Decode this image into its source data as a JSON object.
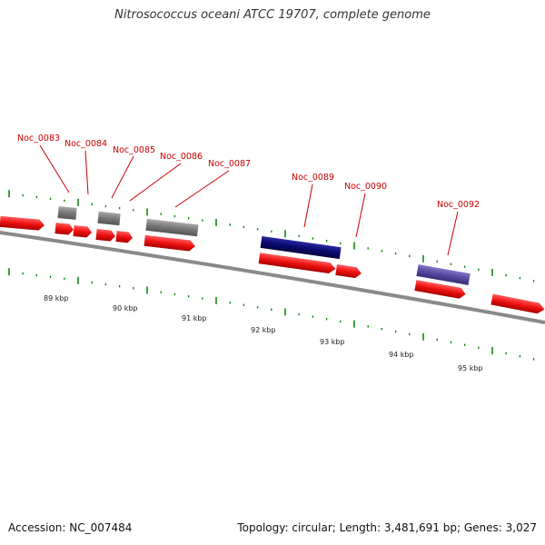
{
  "title": "Nitrosococcus oceani ATCC 19707, complete genome",
  "footer": {
    "accession": "Accession: NC_007484",
    "summary": "Topology: circular; Length: 3,481,691 bp; Genes: 3,027"
  },
  "colors": {
    "cds_forward": "#ee1111",
    "gene_gray": "#777777",
    "gene_navy": "#0a0a6e",
    "gene_purple": "#5548a0",
    "label_red": "#cc0000",
    "backbone": "#8a8a8a",
    "tick_green": "#118811"
  },
  "gene_labels": [
    "Noc_0083",
    "Noc_0084",
    "Noc_0085",
    "Noc_0086",
    "Noc_0087",
    "Noc_0089",
    "Noc_0090",
    "Noc_0092"
  ],
  "kbp_labels": [
    "89 kbp",
    "90 kbp",
    "91 kbp",
    "92 kbp",
    "93 kbp",
    "94 kbp",
    "95 kbp"
  ]
}
